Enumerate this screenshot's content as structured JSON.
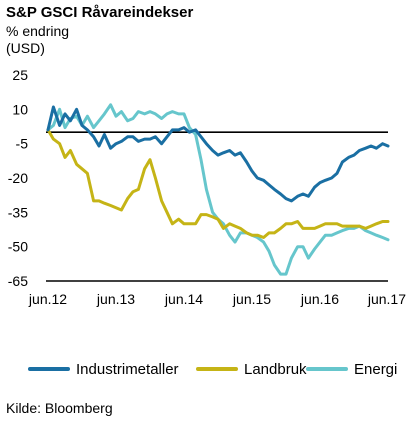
{
  "chart_data": {
    "type": "line",
    "title": "S&P GSCI Råvareindekser",
    "subtitle": "% endring",
    "unit": "(USD)",
    "ylim": [
      -65,
      25
    ],
    "yticks": [
      25,
      10,
      -5,
      -20,
      -35,
      -50,
      -65
    ],
    "xlim": [
      2012.45,
      2017.45
    ],
    "xticks": [
      {
        "label": "jun.12",
        "x": 2012.45
      },
      {
        "label": "jun.13",
        "x": 2013.45
      },
      {
        "label": "jun.14",
        "x": 2014.45
      },
      {
        "label": "jun.15",
        "x": 2015.45
      },
      {
        "label": "jun.16",
        "x": 2016.45
      },
      {
        "label": "jun.17",
        "x": 2017.45
      }
    ],
    "reference_line_y": 0,
    "grid": false,
    "legend_position": "bottom",
    "series": [
      {
        "name": "Industrimetaller",
        "color": "#1a6fa3",
        "x": [
          2012.45,
          2012.53,
          2012.62,
          2012.7,
          2012.78,
          2012.87,
          2012.95,
          2013.03,
          2013.12,
          2013.2,
          2013.28,
          2013.37,
          2013.45,
          2013.53,
          2013.62,
          2013.7,
          2013.78,
          2013.87,
          2013.95,
          2014.03,
          2014.12,
          2014.2,
          2014.28,
          2014.37,
          2014.45,
          2014.53,
          2014.62,
          2014.7,
          2014.78,
          2014.87,
          2014.95,
          2015.03,
          2015.12,
          2015.2,
          2015.28,
          2015.37,
          2015.45,
          2015.53,
          2015.62,
          2015.7,
          2015.78,
          2015.87,
          2015.95,
          2016.03,
          2016.12,
          2016.2,
          2016.28,
          2016.37,
          2016.45,
          2016.53,
          2016.62,
          2016.7,
          2016.78,
          2016.87,
          2016.95,
          2017.03,
          2017.12,
          2017.2,
          2017.28,
          2017.37,
          2017.45
        ],
        "values": [
          1,
          11,
          3,
          8,
          5,
          10,
          3,
          1,
          -2,
          -6,
          -1,
          -7,
          -5,
          -4,
          -2,
          -2,
          -4,
          -3,
          -3,
          -2,
          -5,
          -2,
          1,
          1,
          2,
          0,
          1,
          -2,
          -5,
          -8,
          -10,
          -9,
          -8,
          -10,
          -9,
          -13,
          -17,
          -20,
          -21,
          -23,
          -25,
          -27,
          -29,
          -30,
          -28,
          -27,
          -28,
          -24,
          -22,
          -21,
          -20,
          -18,
          -13,
          -11,
          -10,
          -8,
          -7,
          -6,
          -7,
          -5,
          -6
        ],
        "end_value": -6.5
      },
      {
        "name": "Landbruk",
        "color": "#c5b416",
        "x": [
          2012.45,
          2012.53,
          2012.62,
          2012.7,
          2012.78,
          2012.87,
          2012.95,
          2013.03,
          2013.12,
          2013.2,
          2013.28,
          2013.37,
          2013.45,
          2013.53,
          2013.62,
          2013.7,
          2013.78,
          2013.87,
          2013.95,
          2014.03,
          2014.12,
          2014.2,
          2014.28,
          2014.37,
          2014.45,
          2014.53,
          2014.62,
          2014.7,
          2014.78,
          2014.87,
          2014.95,
          2015.03,
          2015.12,
          2015.2,
          2015.28,
          2015.37,
          2015.45,
          2015.53,
          2015.62,
          2015.7,
          2015.78,
          2015.87,
          2015.95,
          2016.03,
          2016.12,
          2016.2,
          2016.28,
          2016.37,
          2016.45,
          2016.53,
          2016.62,
          2016.7,
          2016.78,
          2016.87,
          2016.95,
          2017.03,
          2017.12,
          2017.2,
          2017.28,
          2017.37,
          2017.45
        ],
        "values": [
          1,
          -3,
          -5,
          -11,
          -8,
          -14,
          -16,
          -18,
          -30,
          -30,
          -31,
          -32,
          -33,
          -34,
          -29,
          -26,
          -25,
          -16,
          -12,
          -20,
          -30,
          -35,
          -40,
          -38,
          -40,
          -40,
          -40,
          -36,
          -36,
          -37,
          -38,
          -42,
          -40,
          -41,
          -42,
          -44,
          -45,
          -45,
          -46,
          -44,
          -44,
          -42,
          -40,
          -40,
          -39,
          -42,
          -42,
          -42,
          -41,
          -40,
          -40,
          -40,
          -41,
          -41,
          -41,
          -41,
          -42,
          -41,
          -40,
          -39,
          -39
        ],
        "end_value": -39
      },
      {
        "name": "Energi",
        "color": "#66c6cc",
        "x": [
          2012.45,
          2012.53,
          2012.62,
          2012.7,
          2012.78,
          2012.87,
          2012.95,
          2013.03,
          2013.12,
          2013.2,
          2013.28,
          2013.37,
          2013.45,
          2013.53,
          2013.62,
          2013.7,
          2013.78,
          2013.87,
          2013.95,
          2014.03,
          2014.12,
          2014.2,
          2014.28,
          2014.37,
          2014.45,
          2014.53,
          2014.62,
          2014.7,
          2014.78,
          2014.87,
          2014.95,
          2015.03,
          2015.12,
          2015.2,
          2015.28,
          2015.37,
          2015.45,
          2015.53,
          2015.62,
          2015.7,
          2015.78,
          2015.87,
          2015.95,
          2016.03,
          2016.12,
          2016.2,
          2016.28,
          2016.37,
          2016.45,
          2016.53,
          2016.62,
          2016.7,
          2016.78,
          2016.87,
          2016.95,
          2017.03,
          2017.12,
          2017.2,
          2017.28,
          2017.37,
          2017.45
        ],
        "values": [
          1,
          3,
          10,
          2,
          6,
          7,
          3,
          7,
          2,
          5,
          8,
          12,
          7,
          9,
          5,
          6,
          9,
          8,
          9,
          8,
          6,
          8,
          9,
          8,
          8,
          2,
          -1,
          -12,
          -25,
          -35,
          -38,
          -40,
          -45,
          -48,
          -44,
          -44,
          -45,
          -46,
          -48,
          -52,
          -58,
          -62,
          -62,
          -55,
          -50,
          -50,
          -55,
          -51,
          -48,
          -45,
          -45,
          -44,
          -43,
          -42,
          -42,
          -41,
          -43,
          -44,
          -45,
          -46,
          -47
        ],
        "end_value": -47
      }
    ],
    "source": "Kilde: Bloomberg"
  }
}
